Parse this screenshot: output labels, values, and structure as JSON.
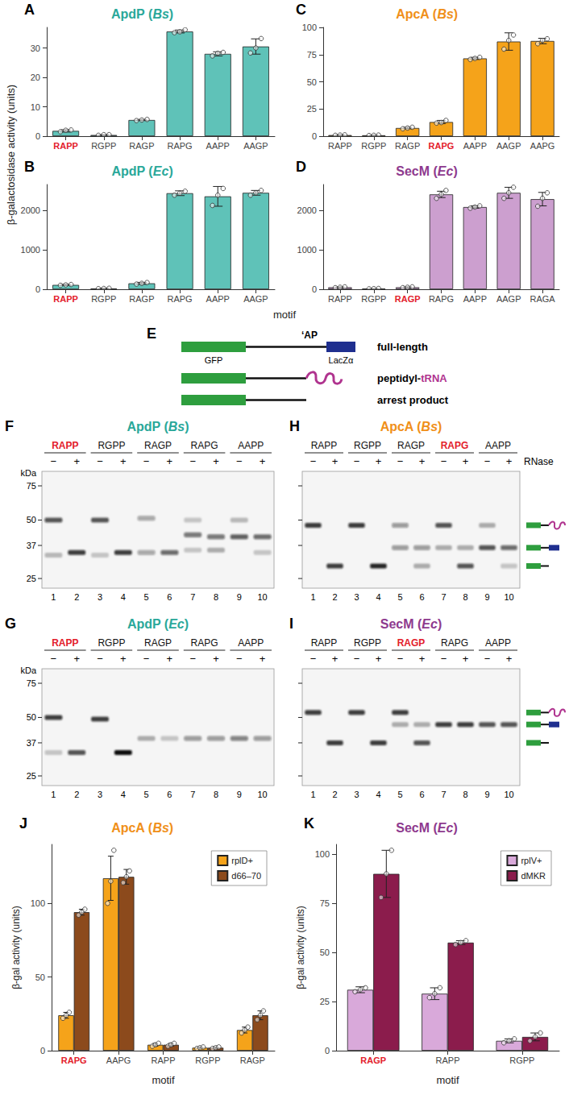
{
  "chart_data": [
    {
      "panel": "A",
      "type": "bar",
      "title": "ApdP (Bs)",
      "categories": [
        "RAPP",
        "RGPP",
        "RAGP",
        "RAPG",
        "AAPP",
        "AAGP"
      ],
      "values": [
        1.8,
        0.4,
        5.5,
        35.6,
        28,
        30.5
      ],
      "errors": [
        0.4,
        0.1,
        0.2,
        0.5,
        0.7,
        2.6
      ],
      "points": [
        [
          1.5,
          2.0,
          2.1
        ],
        [
          0.3,
          0.5,
          0.5
        ],
        [
          5.3,
          5.5,
          5.7
        ],
        [
          35.2,
          35.5,
          36.2
        ],
        [
          27.3,
          28.2,
          28.5
        ],
        [
          28.3,
          30.0,
          33.2
        ]
      ],
      "color": "#5fc2b8",
      "highlight": "RAPP",
      "ylim": [
        0,
        37
      ],
      "yticks": [
        0,
        10,
        20,
        30
      ],
      "grid": false
    },
    {
      "panel": "B",
      "type": "bar",
      "title": "ApdP (Ec)",
      "categories": [
        "RAPP",
        "RGPP",
        "RAGP",
        "RAPG",
        "AAPP",
        "AAGP"
      ],
      "values": [
        110,
        20,
        150,
        2430,
        2350,
        2440
      ],
      "errors": [
        15,
        5,
        25,
        60,
        250,
        60
      ],
      "points": [
        [
          100,
          110,
          120
        ],
        [
          15,
          20,
          25
        ],
        [
          130,
          150,
          170
        ],
        [
          2380,
          2430,
          2480
        ],
        [
          2120,
          2380,
          2550
        ],
        [
          2380,
          2440,
          2500
        ]
      ],
      "color": "#5fc2b8",
      "highlight": "RAPP",
      "ylim": [
        0,
        2650
      ],
      "yticks": [
        0,
        1000,
        2000
      ],
      "grid": false
    },
    {
      "panel": "C",
      "type": "bar",
      "title": "ApcA (Bs)",
      "categories": [
        "RAPP",
        "RGPP",
        "RAGP",
        "RAPG",
        "AAPP",
        "AAGP",
        "AAPG"
      ],
      "values": [
        1,
        0.8,
        7.5,
        13,
        71.5,
        87,
        87.5
      ],
      "errors": [
        0.3,
        0.2,
        0.7,
        1.5,
        1,
        8,
        2.5
      ],
      "points": [
        [
          0.8,
          1,
          1.2
        ],
        [
          0.6,
          0.8,
          1
        ],
        [
          6.8,
          7.5,
          8.2
        ],
        [
          12,
          12.5,
          14.5
        ],
        [
          70.5,
          71.5,
          72.5
        ],
        [
          80,
          88,
          93
        ],
        [
          85,
          88,
          89.5
        ]
      ],
      "color": "#f5a31a",
      "highlight": "RAPG",
      "ylim": [
        0,
        100
      ],
      "yticks": [
        0,
        25,
        50,
        75,
        100
      ],
      "grid": false
    },
    {
      "panel": "D",
      "type": "bar",
      "title": "SecM (Ec)",
      "categories": [
        "RAPP",
        "RGPP",
        "RAGP",
        "RAPG",
        "AAPP",
        "AAGP",
        "RAGA"
      ],
      "values": [
        50,
        15,
        50,
        2400,
        2080,
        2440,
        2280
      ],
      "errors": [
        12,
        5,
        12,
        80,
        30,
        140,
        170
      ],
      "points": [
        [
          40,
          50,
          60
        ],
        [
          10,
          15,
          20
        ],
        [
          40,
          50,
          60
        ],
        [
          2300,
          2400,
          2500
        ],
        [
          2050,
          2080,
          2110
        ],
        [
          2300,
          2440,
          2580
        ],
        [
          2100,
          2300,
          2440
        ]
      ],
      "color": "#cc9fcf",
      "highlight": "RAGP",
      "ylim": [
        0,
        2650
      ],
      "yticks": [
        0,
        1000,
        2000
      ],
      "grid": false
    },
    {
      "panel": "J",
      "type": "bar",
      "title": "ApcA (Bs)",
      "x_label": "motif",
      "y_label": "β-gal activity (units)",
      "categories": [
        "RAPG",
        "AAPG",
        "RAPP",
        "RGPP",
        "RAGP"
      ],
      "series": [
        {
          "name": "rplD+",
          "color": "#f5a31a",
          "values": [
            24,
            117,
            4,
            2,
            14
          ],
          "errors": [
            2,
            15,
            1,
            0.5,
            2
          ],
          "points": [
            [
              22,
              24,
              26
            ],
            [
              100,
              115,
              136
            ],
            [
              3,
              4,
              5
            ],
            [
              1.5,
              2,
              2.5
            ],
            [
              12,
              14,
              16
            ]
          ]
        },
        {
          "name": "d66–70",
          "color": "#8c4a1c",
          "values": [
            94,
            118,
            4,
            2,
            24
          ],
          "errors": [
            2,
            5,
            1,
            0.5,
            3
          ],
          "points": [
            [
              92,
              94,
              96
            ],
            [
              114,
              118,
              122
            ],
            [
              3,
              4,
              5
            ],
            [
              1.5,
              2,
              2.5
            ],
            [
              21,
              24,
              27
            ]
          ]
        }
      ],
      "legend": "top-right",
      "highlight": "RAPG",
      "ylim": [
        0,
        140
      ],
      "yticks": [
        0,
        50,
        100
      ],
      "grid": false
    },
    {
      "panel": "K",
      "type": "bar",
      "title": "SecM (Ec)",
      "x_label": "motif",
      "y_label": "β-gal activity (units)",
      "categories": [
        "RAGP",
        "RAPP",
        "RGPP"
      ],
      "series": [
        {
          "name": "rplV+",
          "color": "#d9a9da",
          "values": [
            31,
            29,
            5
          ],
          "errors": [
            1.5,
            3,
            1
          ],
          "points": [
            [
              30,
              31,
              32
            ],
            [
              27,
              29,
              32
            ],
            [
              4,
              5,
              6
            ]
          ]
        },
        {
          "name": "dMKR",
          "color": "#8b1c4c",
          "values": [
            90,
            55,
            7
          ],
          "errors": [
            12,
            1,
            2
          ],
          "points": [
            [
              78,
              90,
              102
            ],
            [
              54,
              55,
              56
            ],
            [
              5,
              7,
              9
            ]
          ]
        }
      ],
      "legend": "top-right",
      "highlight": "RAGP",
      "ylim": [
        0,
        105
      ],
      "yticks": [
        0,
        25,
        50,
        75,
        100
      ],
      "grid": false
    }
  ],
  "shared_labels": {
    "y": "β-galactosidase activity (units)",
    "x": "motif"
  },
  "diagram": {
    "panel": "E",
    "motif_mark": "‘AP",
    "parts": [
      "GFP",
      "LacZα"
    ],
    "constructs": [
      "full-length",
      "peptidyl-tRNA",
      "arrest product"
    ]
  },
  "blots": [
    {
      "panel": "F",
      "title": "ApdP (Bs)",
      "kda_label": "kDa",
      "ladder": [
        75,
        50,
        37,
        25
      ],
      "groups": [
        "RAPP",
        "RGPP",
        "RAGP",
        "RAPG",
        "AAPP"
      ],
      "highlight": "RAPP",
      "lanes": [
        {
          "number": 1,
          "rnase": "−",
          "bands": [
            {
              "kda": 50,
              "strength": 0.7
            },
            {
              "kda": 33,
              "strength": 0.25
            }
          ]
        },
        {
          "number": 2,
          "rnase": "+",
          "bands": [
            {
              "kda": 34,
              "strength": 0.8
            }
          ]
        },
        {
          "number": 3,
          "rnase": "−",
          "bands": [
            {
              "kda": 50,
              "strength": 0.7
            },
            {
              "kda": 33,
              "strength": 0.2
            }
          ]
        },
        {
          "number": 4,
          "rnase": "+",
          "bands": [
            {
              "kda": 34,
              "strength": 0.8
            }
          ]
        },
        {
          "number": 5,
          "rnase": "−",
          "bands": [
            {
              "kda": 51,
              "strength": 0.35
            },
            {
              "kda": 34,
              "strength": 0.35
            }
          ]
        },
        {
          "number": 6,
          "rnase": "+",
          "bands": [
            {
              "kda": 34,
              "strength": 0.6
            }
          ]
        },
        {
          "number": 7,
          "rnase": "−",
          "bands": [
            {
              "kda": 50,
              "strength": 0.2
            },
            {
              "kda": 42,
              "strength": 0.55
            },
            {
              "kda": 35,
              "strength": 0.2
            }
          ]
        },
        {
          "number": 8,
          "rnase": "+",
          "bands": [
            {
              "kda": 41,
              "strength": 0.55
            },
            {
              "kda": 35,
              "strength": 0.3
            }
          ]
        },
        {
          "number": 9,
          "rnase": "−",
          "bands": [
            {
              "kda": 50,
              "strength": 0.25
            },
            {
              "kda": 41,
              "strength": 0.65
            }
          ]
        },
        {
          "number": 10,
          "rnase": "+",
          "bands": [
            {
              "kda": 41,
              "strength": 0.6
            },
            {
              "kda": 34,
              "strength": 0.2
            }
          ]
        }
      ]
    },
    {
      "panel": "G",
      "title": "ApdP (Ec)",
      "kda_label": "kDa",
      "ladder": [
        75,
        50,
        37,
        25
      ],
      "groups": [
        "RAPP",
        "RGPP",
        "RAGP",
        "RAPG",
        "AAPP"
      ],
      "highlight": "RAPP",
      "lanes": [
        {
          "number": 1,
          "rnase": "−",
          "bands": [
            {
              "kda": 50,
              "strength": 0.8
            },
            {
              "kda": 33,
              "strength": 0.2
            }
          ]
        },
        {
          "number": 2,
          "rnase": "+",
          "bands": [
            {
              "kda": 33,
              "strength": 0.7
            }
          ]
        },
        {
          "number": 3,
          "rnase": "−",
          "bands": [
            {
              "kda": 49,
              "strength": 0.8
            }
          ]
        },
        {
          "number": 4,
          "rnase": "+",
          "bands": [
            {
              "kda": 33,
              "strength": 1.0
            }
          ]
        },
        {
          "number": 5,
          "rnase": "−",
          "bands": [
            {
              "kda": 39,
              "strength": 0.3
            }
          ]
        },
        {
          "number": 6,
          "rnase": "+",
          "bands": [
            {
              "kda": 39,
              "strength": 0.2
            }
          ]
        },
        {
          "number": 7,
          "rnase": "−",
          "bands": [
            {
              "kda": 39,
              "strength": 0.4
            }
          ]
        },
        {
          "number": 8,
          "rnase": "+",
          "bands": [
            {
              "kda": 39,
              "strength": 0.4
            }
          ]
        },
        {
          "number": 9,
          "rnase": "−",
          "bands": [
            {
              "kda": 39,
              "strength": 0.5
            }
          ]
        },
        {
          "number": 10,
          "rnase": "+",
          "bands": [
            {
              "kda": 39,
              "strength": 0.4
            }
          ]
        }
      ]
    },
    {
      "panel": "H",
      "title": "ApcA (Bs)",
      "ladder": [
        75,
        50,
        37,
        25
      ],
      "treatment_label": "RNase",
      "groups": [
        "RAPP",
        "RGPP",
        "RAGP",
        "RAPG",
        "AAPP"
      ],
      "highlight": "RAPG",
      "icons_kda": [
        47,
        36,
        29
      ],
      "lanes": [
        {
          "number": 1,
          "rnase": "−",
          "bands": [
            {
              "kda": 47,
              "strength": 0.8
            }
          ]
        },
        {
          "number": 2,
          "rnase": "+",
          "bands": [
            {
              "kda": 29,
              "strength": 0.8
            }
          ]
        },
        {
          "number": 3,
          "rnase": "−",
          "bands": [
            {
              "kda": 47,
              "strength": 0.8
            }
          ]
        },
        {
          "number": 4,
          "rnase": "+",
          "bands": [
            {
              "kda": 29,
              "strength": 0.9
            }
          ]
        },
        {
          "number": 5,
          "rnase": "−",
          "bands": [
            {
              "kda": 47,
              "strength": 0.4
            },
            {
              "kda": 36,
              "strength": 0.4
            }
          ]
        },
        {
          "number": 6,
          "rnase": "+",
          "bands": [
            {
              "kda": 36,
              "strength": 0.4
            },
            {
              "kda": 29,
              "strength": 0.3
            }
          ]
        },
        {
          "number": 7,
          "rnase": "−",
          "bands": [
            {
              "kda": 47,
              "strength": 0.7
            },
            {
              "kda": 36,
              "strength": 0.3
            }
          ]
        },
        {
          "number": 8,
          "rnase": "+",
          "bands": [
            {
              "kda": 36,
              "strength": 0.3
            },
            {
              "kda": 29,
              "strength": 0.7
            }
          ]
        },
        {
          "number": 9,
          "rnase": "−",
          "bands": [
            {
              "kda": 47,
              "strength": 0.3
            },
            {
              "kda": 36,
              "strength": 0.7
            }
          ]
        },
        {
          "number": 10,
          "rnase": "+",
          "bands": [
            {
              "kda": 36,
              "strength": 0.6
            },
            {
              "kda": 29,
              "strength": 0.2
            }
          ]
        }
      ]
    },
    {
      "panel": "I",
      "title": "SecM (Ec)",
      "ladder": [
        75,
        50,
        37,
        25
      ],
      "groups": [
        "RAPP",
        "RGPP",
        "RAGP",
        "RAPG",
        "AAPP"
      ],
      "highlight": "RAGP",
      "icons_kda": [
        53,
        46,
        37
      ],
      "lanes": [
        {
          "number": 1,
          "rnase": "−",
          "bands": [
            {
              "kda": 53,
              "strength": 0.8
            }
          ]
        },
        {
          "number": 2,
          "rnase": "+",
          "bands": [
            {
              "kda": 37,
              "strength": 0.8
            }
          ]
        },
        {
          "number": 3,
          "rnase": "−",
          "bands": [
            {
              "kda": 53,
              "strength": 0.8
            }
          ]
        },
        {
          "number": 4,
          "rnase": "+",
          "bands": [
            {
              "kda": 37,
              "strength": 0.8
            }
          ]
        },
        {
          "number": 5,
          "rnase": "−",
          "bands": [
            {
              "kda": 53,
              "strength": 0.8
            },
            {
              "kda": 46,
              "strength": 0.3
            }
          ]
        },
        {
          "number": 6,
          "rnase": "+",
          "bands": [
            {
              "kda": 46,
              "strength": 0.3
            },
            {
              "kda": 37,
              "strength": 0.7
            }
          ]
        },
        {
          "number": 7,
          "rnase": "−",
          "bands": [
            {
              "kda": 46,
              "strength": 0.8
            }
          ]
        },
        {
          "number": 8,
          "rnase": "+",
          "bands": [
            {
              "kda": 46,
              "strength": 0.8
            }
          ]
        },
        {
          "number": 9,
          "rnase": "−",
          "bands": [
            {
              "kda": 46,
              "strength": 0.7
            }
          ]
        },
        {
          "number": 10,
          "rnase": "+",
          "bands": [
            {
              "kda": 46,
              "strength": 0.7
            }
          ]
        }
      ]
    }
  ]
}
